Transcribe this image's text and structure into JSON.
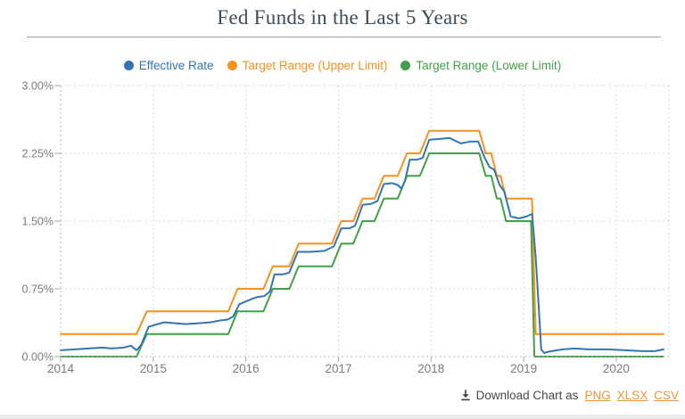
{
  "page": {
    "title": "Fed Funds in the Last 5 Years"
  },
  "legend": [
    {
      "label": "Effective Rate",
      "color": "#3276b1"
    },
    {
      "label": "Target Range (Upper Limit)",
      "color": "#f6921e"
    },
    {
      "label": "Target Range (Lower Limit)",
      "color": "#41a048"
    }
  ],
  "footer": {
    "download_label": "Download Chart as",
    "links": [
      "PNG",
      "XLSX",
      "CSV"
    ],
    "link_color": "#e9953c",
    "icon": "download-icon"
  },
  "chart_data": {
    "type": "line",
    "title": "Fed Funds in the Last 5 Years",
    "grid": true,
    "legend_position": "top",
    "x_axis": {
      "min": 2014,
      "max": 2020.54,
      "tick_values": [
        2014,
        2015,
        2016,
        2017,
        2018,
        2019,
        2020
      ],
      "tick_labels": [
        "2014",
        "2015",
        "2016",
        "2017",
        "2018",
        "2019",
        "2020"
      ]
    },
    "y_axis": {
      "min": 0,
      "max": 3,
      "tick_values": [
        0,
        0.75,
        1.5,
        2.25,
        3
      ],
      "tick_labels": [
        "0.00%",
        "0.75%",
        "1.50%",
        "2.25%",
        "3.00%"
      ]
    },
    "colors": {
      "grid": "#d9d9d9",
      "axis": "#b4b4b4",
      "tick": "#a8a8a8",
      "axis_label": "#7b7b7b"
    },
    "series": [
      {
        "name": "Effective Rate",
        "color": "#3276b1",
        "points": [
          [
            2014.0,
            0.07
          ],
          [
            2014.15,
            0.08
          ],
          [
            2014.3,
            0.09
          ],
          [
            2014.45,
            0.1
          ],
          [
            2014.55,
            0.09
          ],
          [
            2014.68,
            0.1
          ],
          [
            2014.76,
            0.12
          ],
          [
            2014.82,
            0.07
          ],
          [
            2014.87,
            0.13
          ],
          [
            2014.95,
            0.33
          ],
          [
            2015.05,
            0.36
          ],
          [
            2015.12,
            0.38
          ],
          [
            2015.22,
            0.37
          ],
          [
            2015.35,
            0.36
          ],
          [
            2015.5,
            0.37
          ],
          [
            2015.62,
            0.38
          ],
          [
            2015.72,
            0.4
          ],
          [
            2015.8,
            0.41
          ],
          [
            2015.86,
            0.44
          ],
          [
            2015.93,
            0.58
          ],
          [
            2016.0,
            0.61
          ],
          [
            2016.07,
            0.64
          ],
          [
            2016.13,
            0.66
          ],
          [
            2016.2,
            0.67
          ],
          [
            2016.26,
            0.72
          ],
          [
            2016.31,
            0.91
          ],
          [
            2016.4,
            0.91
          ],
          [
            2016.47,
            0.93
          ],
          [
            2016.56,
            1.16
          ],
          [
            2016.7,
            1.16
          ],
          [
            2016.85,
            1.17
          ],
          [
            2016.95,
            1.22
          ],
          [
            2017.03,
            1.42
          ],
          [
            2017.12,
            1.42
          ],
          [
            2017.18,
            1.45
          ],
          [
            2017.26,
            1.68
          ],
          [
            2017.35,
            1.69
          ],
          [
            2017.42,
            1.72
          ],
          [
            2017.49,
            1.91
          ],
          [
            2017.58,
            1.92
          ],
          [
            2017.64,
            1.9
          ],
          [
            2017.68,
            1.86
          ],
          [
            2017.72,
            1.95
          ],
          [
            2017.77,
            2.18
          ],
          [
            2017.85,
            2.18
          ],
          [
            2017.91,
            2.2
          ],
          [
            2017.98,
            2.4
          ],
          [
            2018.1,
            2.41
          ],
          [
            2018.2,
            2.42
          ],
          [
            2018.32,
            2.36
          ],
          [
            2018.42,
            2.38
          ],
          [
            2018.51,
            2.38
          ],
          [
            2018.58,
            2.2
          ],
          [
            2018.63,
            2.1
          ],
          [
            2018.68,
            2.07
          ],
          [
            2018.74,
            1.9
          ],
          [
            2018.79,
            1.83
          ],
          [
            2018.86,
            1.55
          ],
          [
            2018.95,
            1.53
          ],
          [
            2019.03,
            1.55
          ],
          [
            2019.09,
            1.58
          ],
          [
            2019.13,
            1.1
          ],
          [
            2019.16,
            0.6
          ],
          [
            2019.19,
            0.08
          ],
          [
            2019.22,
            0.04
          ],
          [
            2019.3,
            0.06
          ],
          [
            2019.42,
            0.08
          ],
          [
            2019.55,
            0.09
          ],
          [
            2019.7,
            0.08
          ],
          [
            2019.9,
            0.08
          ],
          [
            2020.1,
            0.07
          ],
          [
            2020.28,
            0.06
          ],
          [
            2020.42,
            0.06
          ],
          [
            2020.51,
            0.08
          ]
        ]
      },
      {
        "name": "Target Range (Upper Limit)",
        "color": "#f6921e",
        "points": [
          [
            2014.0,
            0.25
          ],
          [
            2014.82,
            0.25
          ],
          [
            2014.93,
            0.5
          ],
          [
            2015.81,
            0.5
          ],
          [
            2015.91,
            0.75
          ],
          [
            2016.19,
            0.75
          ],
          [
            2016.29,
            1.0
          ],
          [
            2016.47,
            1.0
          ],
          [
            2016.57,
            1.25
          ],
          [
            2016.93,
            1.25
          ],
          [
            2017.03,
            1.5
          ],
          [
            2017.16,
            1.5
          ],
          [
            2017.26,
            1.75
          ],
          [
            2017.39,
            1.75
          ],
          [
            2017.49,
            2.0
          ],
          [
            2017.64,
            2.0
          ],
          [
            2017.74,
            2.25
          ],
          [
            2017.88,
            2.25
          ],
          [
            2017.98,
            2.5
          ],
          [
            2018.52,
            2.5
          ],
          [
            2018.59,
            2.25
          ],
          [
            2018.65,
            2.25
          ],
          [
            2018.71,
            2.0
          ],
          [
            2018.75,
            2.0
          ],
          [
            2018.81,
            1.75
          ],
          [
            2019.09,
            1.75
          ],
          [
            2019.13,
            0.25
          ],
          [
            2020.51,
            0.25
          ]
        ]
      },
      {
        "name": "Target Range (Lower Limit)",
        "color": "#41a048",
        "points": [
          [
            2014.0,
            0.0
          ],
          [
            2014.82,
            0.0
          ],
          [
            2014.93,
            0.25
          ],
          [
            2015.81,
            0.25
          ],
          [
            2015.91,
            0.5
          ],
          [
            2016.19,
            0.5
          ],
          [
            2016.29,
            0.75
          ],
          [
            2016.47,
            0.75
          ],
          [
            2016.57,
            1.0
          ],
          [
            2016.93,
            1.0
          ],
          [
            2017.03,
            1.25
          ],
          [
            2017.16,
            1.25
          ],
          [
            2017.26,
            1.5
          ],
          [
            2017.39,
            1.5
          ],
          [
            2017.49,
            1.75
          ],
          [
            2017.64,
            1.75
          ],
          [
            2017.74,
            2.0
          ],
          [
            2017.88,
            2.0
          ],
          [
            2017.98,
            2.25
          ],
          [
            2018.52,
            2.25
          ],
          [
            2018.59,
            2.0
          ],
          [
            2018.65,
            2.0
          ],
          [
            2018.71,
            1.75
          ],
          [
            2018.75,
            1.75
          ],
          [
            2018.81,
            1.5
          ],
          [
            2019.08,
            1.5
          ],
          [
            2019.115,
            0.0
          ],
          [
            2020.51,
            0.0
          ]
        ]
      }
    ]
  }
}
